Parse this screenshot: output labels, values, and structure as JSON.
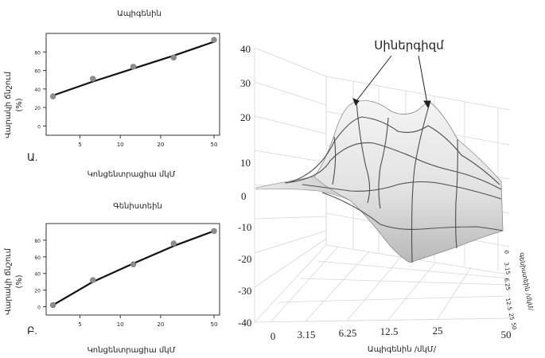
{
  "chart_data": [
    {
      "type": "scatter",
      "title": "Ապիգենին",
      "panel_letter": "Ա.",
      "xlabel": "Կոնցենտրացիա մկՄ",
      "ylabel": "Վարակի ճնշում (%)",
      "x_scale": "log",
      "xticks": [
        "5",
        "10",
        "20",
        "50"
      ],
      "yticks": [
        "0",
        "20",
        "40",
        "60",
        "80"
      ],
      "xlim": [
        2.8,
        55
      ],
      "ylim": [
        -10,
        100
      ],
      "grid": false,
      "points": [
        {
          "x": 3.15,
          "y": 32
        },
        {
          "x": 6.25,
          "y": 51
        },
        {
          "x": 12.5,
          "y": 64
        },
        {
          "x": 25,
          "y": 74
        },
        {
          "x": 50,
          "y": 93
        }
      ],
      "fit_line": [
        {
          "x": 3.15,
          "y": 33
        },
        {
          "x": 6.25,
          "y": 48
        },
        {
          "x": 12.5,
          "y": 62
        },
        {
          "x": 25,
          "y": 76
        },
        {
          "x": 50,
          "y": 91
        }
      ]
    },
    {
      "type": "scatter",
      "title": "Գենիստեին",
      "panel_letter": "Բ.",
      "xlabel": "Կոնցենտրացիա մկՄ",
      "ylabel": "Վարակի ճնշում (%)",
      "x_scale": "log",
      "xticks": [
        "5",
        "10",
        "20",
        "50"
      ],
      "yticks": [
        "0",
        "20",
        "40",
        "60",
        "80"
      ],
      "xlim": [
        2.8,
        55
      ],
      "ylim": [
        -10,
        100
      ],
      "grid": false,
      "points": [
        {
          "x": 3.15,
          "y": 2
        },
        {
          "x": 6.25,
          "y": 32
        },
        {
          "x": 12.5,
          "y": 51
        },
        {
          "x": 25,
          "y": 76
        },
        {
          "x": 50,
          "y": 91
        }
      ],
      "fit_line": [
        {
          "x": 3.15,
          "y": 2
        },
        {
          "x": 6.25,
          "y": 30
        },
        {
          "x": 12.5,
          "y": 52
        },
        {
          "x": 25,
          "y": 73
        },
        {
          "x": 50,
          "y": 91
        }
      ]
    },
    {
      "type": "surface",
      "annotation": "Սիներգիզմ",
      "xlabel": "Ապիգենին /մկՄ/",
      "ylabel": "Գենիստեին /մկՄ/",
      "x_ticks": [
        "0",
        "3.15",
        "6.25",
        "12.5",
        "25",
        "50"
      ],
      "y_ticks": [
        "0",
        "3.15",
        "6.25",
        "12.5",
        "25",
        "50"
      ],
      "z_ticks": [
        "40",
        "30",
        "20",
        "10",
        "0",
        "-10",
        "-20",
        "-30",
        "-40"
      ],
      "zlim": [
        -40,
        40
      ],
      "grid": true,
      "peaks": [
        {
          "apigenin": 3.15,
          "genistein": 12.5,
          "z": 20
        },
        {
          "apigenin": 12.5,
          "genistein": 12.5,
          "z": 20
        }
      ]
    }
  ]
}
